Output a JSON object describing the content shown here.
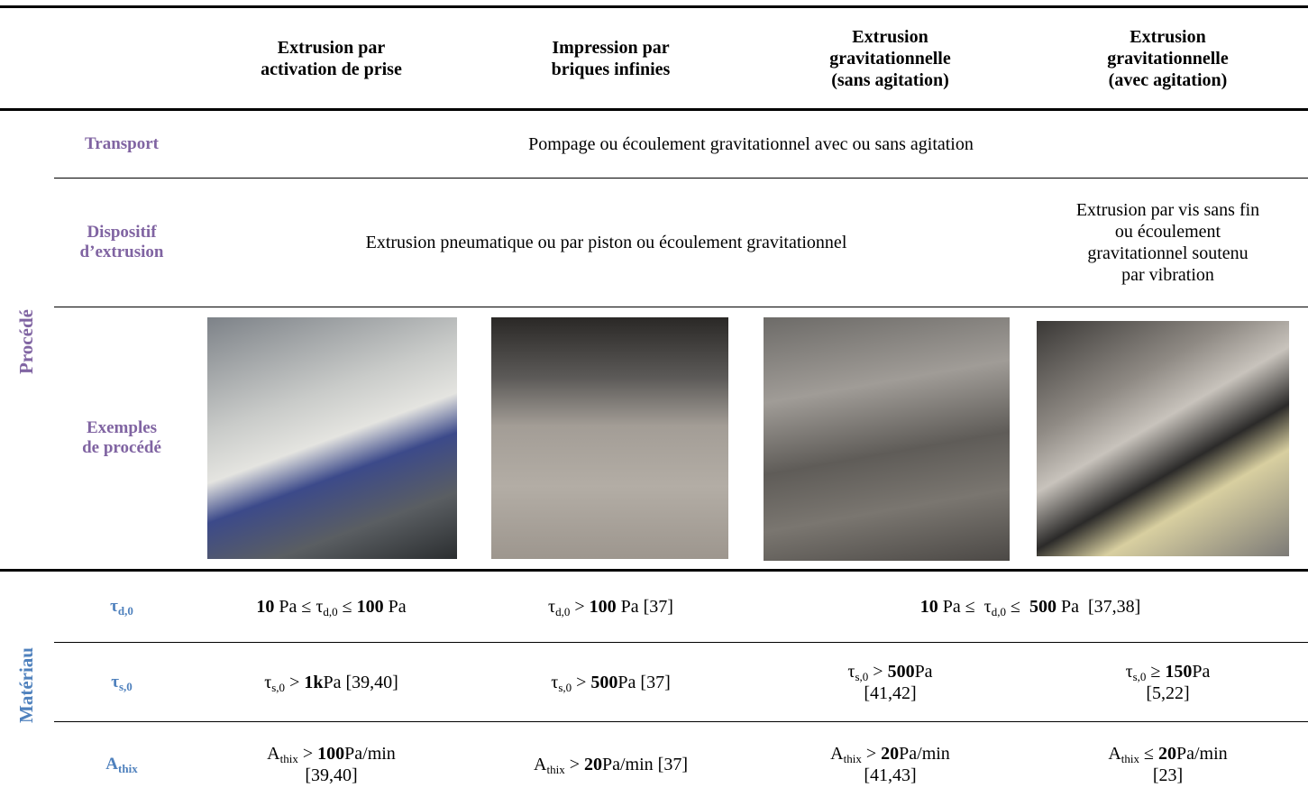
{
  "header": {
    "columns": [
      [
        "Extrusion par",
        "activation de prise"
      ],
      [
        "Impression par",
        "briques infinies"
      ],
      [
        "Extrusion",
        "gravitationnelle",
        "(sans agitation)"
      ],
      [
        "Extrusion",
        "gravitationnelle",
        "(avec agitation)"
      ]
    ]
  },
  "groups": {
    "process": "Procédé",
    "material": "Matériau"
  },
  "process_rows": [
    {
      "label": [
        "Transport"
      ],
      "cells": [
        [
          "Pompage ou écoulement gravitationnel avec ou sans agitation"
        ]
      ]
    },
    {
      "label": [
        "Dispositif",
        "d’extrusion"
      ],
      "cells": [
        [
          "Extrusion pneumatique ou par piston ou écoulement gravitationnel"
        ],
        [
          "Extrusion par vis sans fin",
          "ou écoulement",
          "gravitationnel soutenu",
          "par vibration"
        ]
      ]
    },
    {
      "label": [
        "Exemples",
        "de procédé"
      ]
    }
  ],
  "material_rows": [
    {
      "label": [
        "τ",
        "d,0"
      ],
      "cells": [
        [
          [
            "10",
            " Pa ≤ τ",
            "d,0",
            " ≤ ",
            "100",
            " Pa"
          ]
        ],
        [
          [
            "τ",
            "d,0",
            " > ",
            "100",
            " Pa [37]"
          ]
        ],
        [
          [
            "10",
            " Pa ≤  τ",
            "d,0",
            " ≤  ",
            "500",
            " Pa  [37,38]"
          ]
        ]
      ]
    },
    {
      "label": [
        "τ",
        "s,0"
      ],
      "cells": [
        [
          [
            "τ",
            "s,0",
            " > ",
            "1k",
            "Pa [39,40]"
          ]
        ],
        [
          [
            "τ",
            "s,0",
            " > ",
            "500",
            "Pa [37]"
          ]
        ],
        [
          [
            "τ",
            "s,0",
            " > ",
            "500",
            "Pa"
          ],
          [
            "[41,42]"
          ]
        ],
        [
          [
            "τ",
            "s,0",
            " ≥ ",
            "150",
            "Pa"
          ],
          [
            "[5,22]"
          ]
        ]
      ]
    },
    {
      "label": [
        "A",
        "thix"
      ],
      "cells": [
        [
          [
            "A",
            "thix",
            " > ",
            "100",
            "Pa/min"
          ],
          [
            "[39,40]"
          ]
        ],
        [
          [
            "A",
            "thix",
            " > ",
            "20",
            "Pa/min [37]"
          ]
        ],
        [
          [
            "A",
            "thix",
            " > ",
            "20",
            "Pa/min"
          ],
          [
            "[41,43]"
          ]
        ],
        [
          [
            "A",
            "thix",
            " ≤ ",
            "20",
            "Pa/min"
          ],
          [
            "[23]"
          ]
        ]
      ]
    }
  ]
}
